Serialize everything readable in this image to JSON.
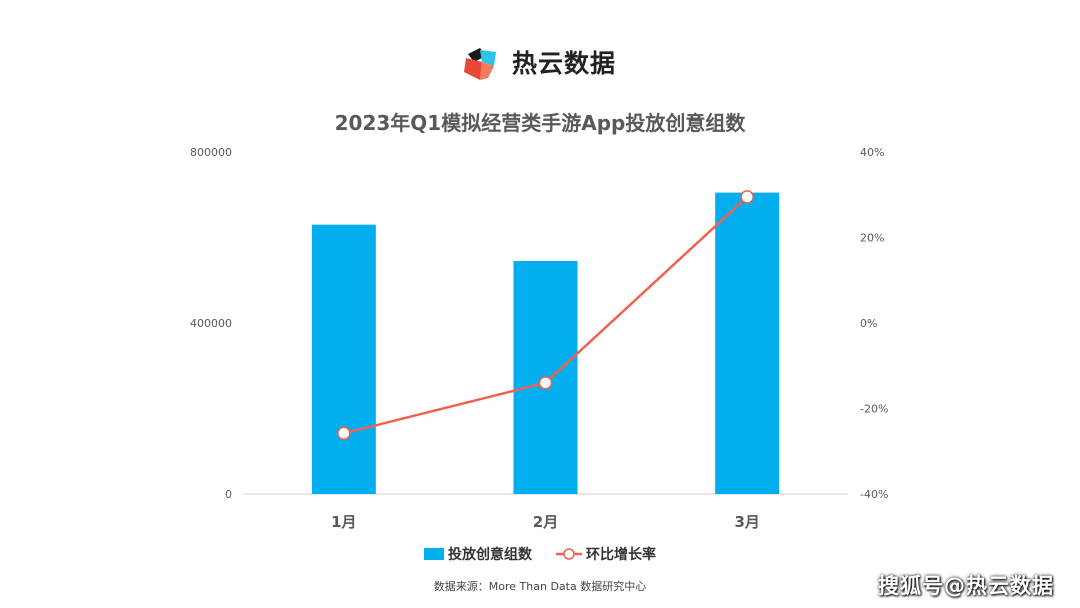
{
  "brand": {
    "name": "热云数据",
    "icon": "cube-logo-icon"
  },
  "watermark": "搜狐号@热云数据",
  "source": "数据来源：More Than Data 数据研究中心",
  "colors": {
    "bar": "#03AEEF",
    "line": "#F0624B",
    "title": "#595959",
    "axis": "#595959"
  },
  "chart_data": {
    "type": "bar",
    "title": "2023年Q1模拟经营类手游App投放创意组数",
    "categories": [
      "1月",
      "2月",
      "3月"
    ],
    "series": [
      {
        "name": "投放创意组数",
        "type": "bar",
        "axis": "left",
        "values": [
          630000,
          545000,
          705000
        ]
      },
      {
        "name": "环比增长率",
        "type": "line",
        "axis": "right",
        "values": [
          -25.8,
          -14.0,
          29.5
        ]
      }
    ],
    "y_left": {
      "ylim": [
        0,
        800000
      ],
      "ticks": [
        "0",
        "400000",
        "800000"
      ]
    },
    "y_right": {
      "ylim": [
        -40,
        40
      ],
      "ticks": [
        "-40%",
        "-20%",
        "0%",
        "20%",
        "40%"
      ]
    },
    "legend": "bottom",
    "grid": false
  }
}
